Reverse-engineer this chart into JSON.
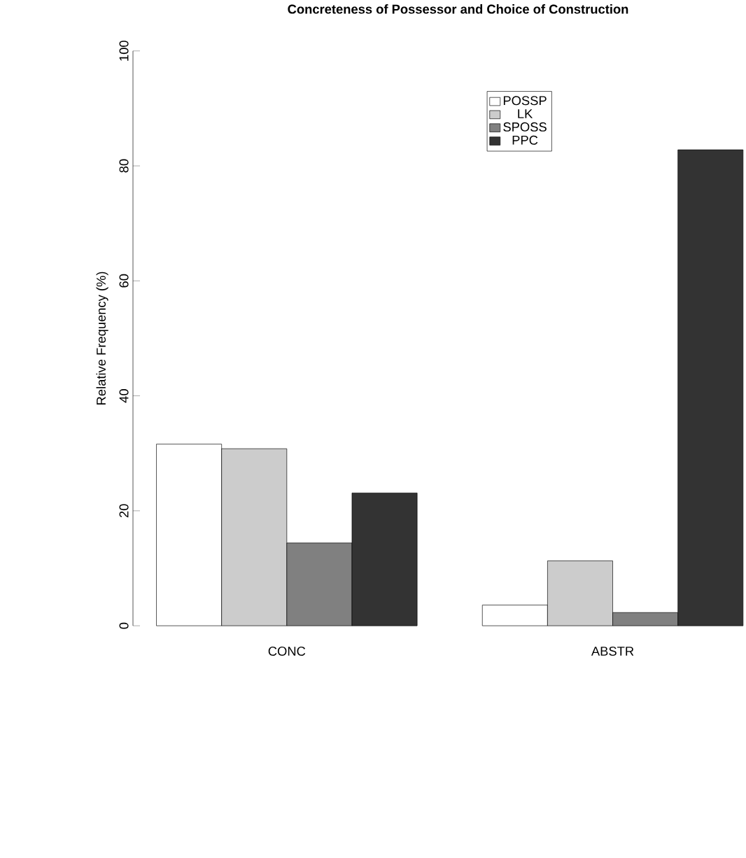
{
  "chart_data": {
    "type": "bar",
    "title": "Concreteness of Possessor and Choice of Construction",
    "ylabel": "Relative Frequency (%)",
    "categories": [
      "CONC",
      "ABSTR"
    ],
    "series": [
      {
        "name": "POSSP",
        "color": "#ffffff",
        "values": [
          31.6,
          3.6
        ]
      },
      {
        "name": "LK",
        "color": "#cccccc",
        "values": [
          30.8,
          11.3
        ]
      },
      {
        "name": "SPOSS",
        "color": "#808080",
        "values": [
          14.4,
          2.3
        ]
      },
      {
        "name": "PPC",
        "color": "#333333",
        "values": [
          23.1,
          82.8
        ]
      }
    ],
    "ylim": [
      0,
      100
    ],
    "yticks": [
      0,
      20,
      40,
      60,
      80,
      100
    ],
    "legend": "top right"
  }
}
